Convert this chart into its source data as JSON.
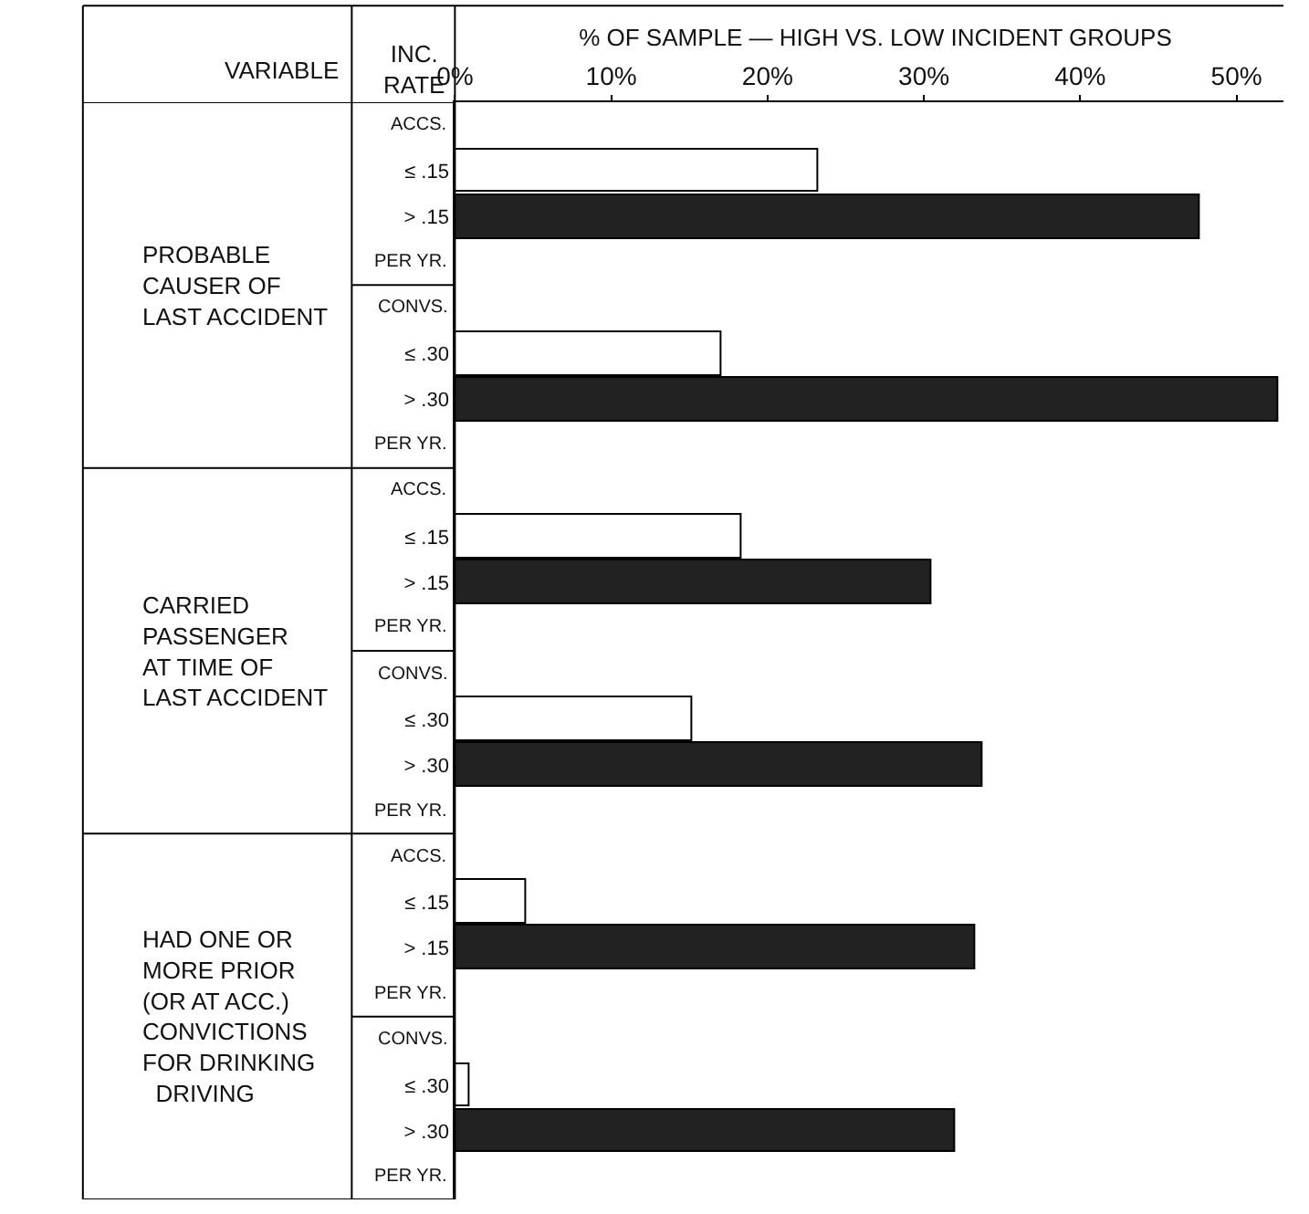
{
  "chart_data": {
    "type": "bar",
    "orientation": "horizontal",
    "title": "% OF SAMPLE — HIGH VS. LOW INCIDENT GROUPS",
    "categories": [
      "≤ .15",
      "> .15",
      "≤ .30",
      "> .30",
      "≤ .15",
      "> .15",
      "≤ .30",
      "> .30",
      "≤ .15",
      "> .15",
      "≤ .30",
      "> .30"
    ],
    "values": [
      23.2,
      47.7,
      17.0,
      52.7,
      18.3,
      30.5,
      15.2,
      33.8,
      4.5,
      33.3,
      0.9,
      32.0
    ],
    "colors": [
      "#ffffff",
      "#222222",
      "#ffffff",
      "#222222",
      "#ffffff",
      "#222222",
      "#ffffff",
      "#222222",
      "#ffffff",
      "#222222",
      "#ffffff",
      "#222222"
    ],
    "xlim": [
      0,
      53
    ],
    "xticks": [
      {
        "value": 0,
        "label": "0%"
      },
      {
        "value": 10,
        "label": "10%"
      },
      {
        "value": 20,
        "label": "20%"
      },
      {
        "value": 30,
        "label": "30%"
      },
      {
        "value": 40,
        "label": "40%"
      },
      {
        "value": 50,
        "label": "50%"
      }
    ],
    "annotations": [
      "VARIABLE",
      "INC.\nRATE",
      "PROBABLE\nCAUSER OF\nLAST ACCIDENT",
      "CARRIED\nPASSENGER\nAT TIME OF\nLAST ACCIDENT",
      "HAD ONE OR\nMORE PRIOR\n(OR AT ACC.)\nCONVICTIONS\nFOR DRINKING\n  DRIVING",
      "ACCS.",
      "PER YR.",
      "CONVS.",
      "PER YR.",
      "ACCS.",
      "PER YR.",
      "CONVS.",
      "PER YR.",
      "ACCS.",
      "PER YR.",
      "CONVS.",
      "PER YR."
    ],
    "legend": false
  }
}
